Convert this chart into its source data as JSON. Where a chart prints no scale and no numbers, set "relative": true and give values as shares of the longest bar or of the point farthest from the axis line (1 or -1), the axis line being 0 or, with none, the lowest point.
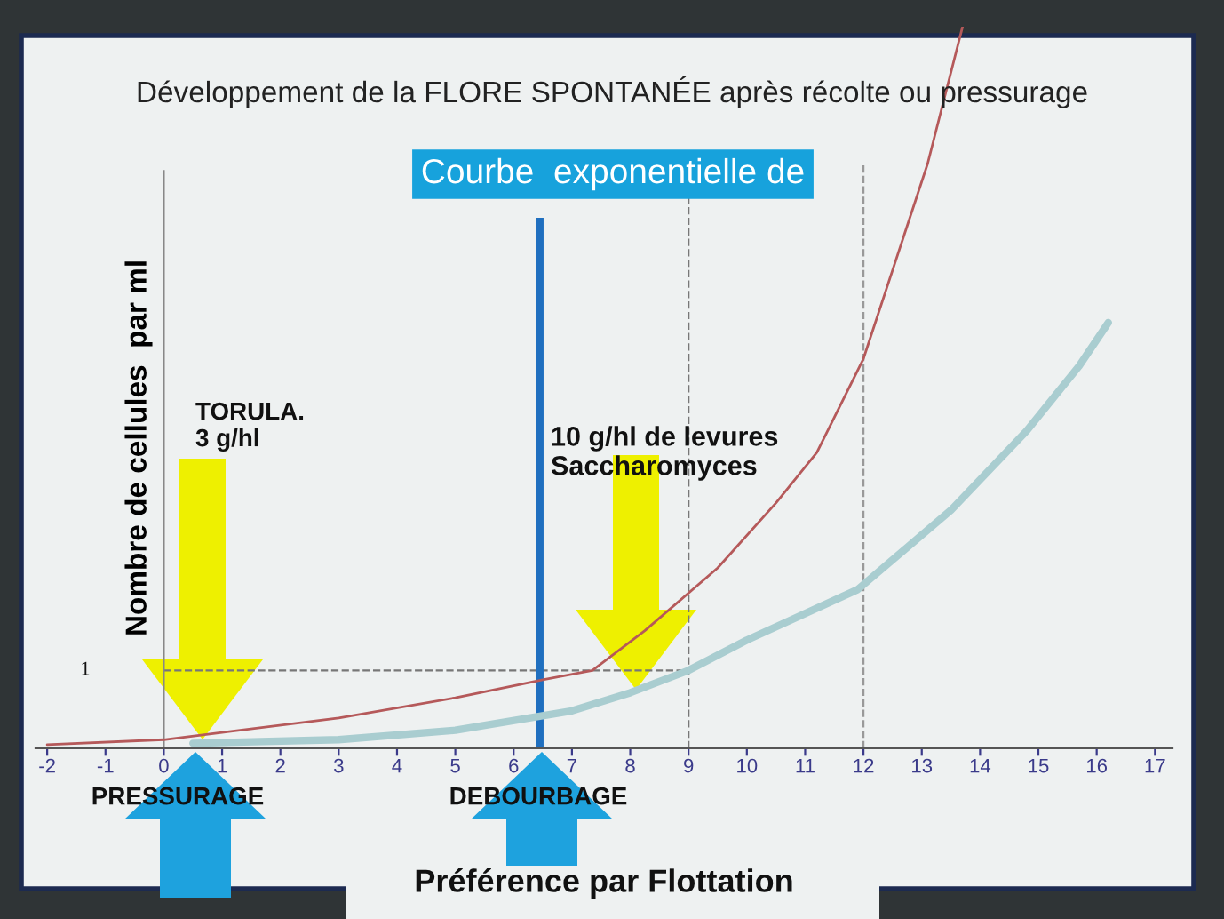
{
  "chart_data": {
    "type": "line",
    "relative": true,
    "title": "Développement de la FLORE SPONTANÉE après récolte ou pressurage",
    "subtitle": "Courbe  exponentielle de",
    "ylabel": "Nombre de cellules  par ml",
    "xlim": [
      -2.2,
      17.3
    ],
    "xticks": [
      -2,
      -1,
      0,
      1,
      2,
      3,
      4,
      5,
      6,
      7,
      8,
      9,
      10,
      11,
      12,
      13,
      14,
      15,
      16,
      17
    ],
    "marker": "none",
    "line_style": "solid",
    "series": [
      {
        "color": "#b5595a",
        "x": [
          -2,
          0,
          1,
          3,
          5,
          6.5,
          7.35,
          8.25,
          9.5,
          10.5,
          11.2,
          12,
          13.1,
          13.7
        ],
        "values": [
          0.005,
          0.012,
          0.022,
          0.042,
          0.07,
          0.095,
          0.108,
          0.163,
          0.25,
          0.34,
          0.41,
          0.54,
          0.81,
          1
        ]
      },
      {
        "color": "#a9cdd0",
        "x": [
          0.5,
          3,
          5,
          7,
          8,
          9,
          10,
          11.9,
          13.5,
          14.8,
          15.7,
          16.2
        ],
        "values": [
          0.007,
          0.012,
          0.025,
          0.052,
          0.077,
          0.108,
          0.15,
          0.22,
          0.33,
          0.44,
          0.53,
          0.59
        ]
      }
    ],
    "ref_lines": [
      {
        "axis": "y",
        "value": 0.108,
        "color": "#777777",
        "line_style": "dashed"
      },
      {
        "axis": "x",
        "value": 9,
        "color": "#777777",
        "line_style": "dashed"
      },
      {
        "axis": "x",
        "value": 12,
        "color": "#999999",
        "line_style": "dashed"
      },
      {
        "axis": "x",
        "value": 6.45,
        "color": "#1f6fbf",
        "line_style": "solid"
      }
    ],
    "annotations": [
      "1",
      "TORULA.\n3 g/hl",
      "10 g/hl de levures\nSaccharomyces",
      "PRESSURAGE",
      "DEBOURBAGE",
      "Préférence par Flottation"
    ]
  }
}
